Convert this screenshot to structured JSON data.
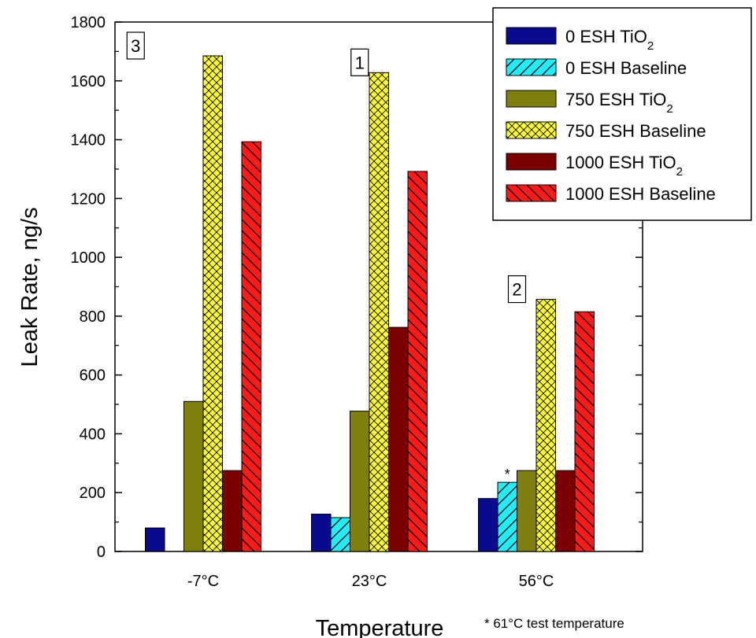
{
  "chart_data": {
    "type": "bar",
    "xlabel": "Temperature",
    "ylabel": "Leak Rate, ng/s",
    "ylim": [
      0,
      1800
    ],
    "yticks": [
      0,
      200,
      400,
      600,
      800,
      1000,
      1200,
      1400,
      1600,
      1800
    ],
    "grid": false,
    "legend_position": "top-right",
    "categories": [
      "-7°C",
      "23°C",
      "56°C"
    ],
    "series": [
      {
        "name": "0 ESH TiO",
        "subscript": "2",
        "values": [
          80,
          127,
          180
        ],
        "color": "#0a0a8c",
        "pattern": "solid"
      },
      {
        "name": "0 ESH Baseline",
        "values": [
          null,
          115,
          235
        ],
        "color": "#22ecf5",
        "pattern": "diagonal"
      },
      {
        "name": "750 ESH TiO",
        "subscript": "2",
        "values": [
          510,
          477,
          275
        ],
        "color": "#7f7f0e",
        "pattern": "solid"
      },
      {
        "name": "750 ESH Baseline",
        "values": [
          1685,
          1628,
          857
        ],
        "color": "#ffff33",
        "pattern": "crosshatch"
      },
      {
        "name": "1000 ESH TiO",
        "subscript": "2",
        "values": [
          275,
          762,
          275
        ],
        "color": "#7a0000",
        "pattern": "solid"
      },
      {
        "name": "1000 ESH Baseline",
        "values": [
          1393,
          1292,
          815
        ],
        "color": "#ff1a1a",
        "pattern": "backdiagonal"
      }
    ],
    "annotations": {
      "boxes": [
        {
          "text": "3",
          "category": 0
        },
        {
          "text": "1",
          "category": 1
        },
        {
          "text": "2",
          "category": 2
        }
      ],
      "star": {
        "text": "*",
        "category": 2,
        "series": 1
      },
      "footnote": "* 61°C test temperature"
    }
  }
}
